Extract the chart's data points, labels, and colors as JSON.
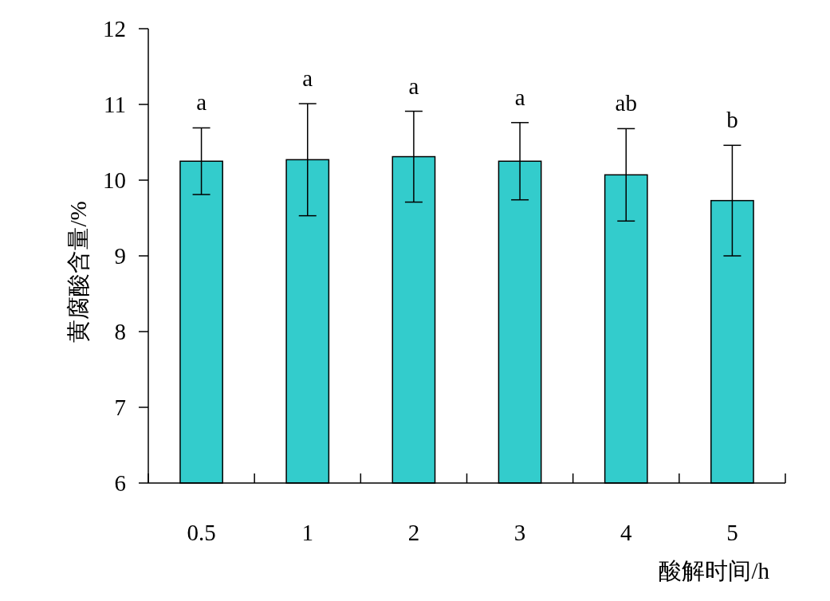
{
  "chart_data": {
    "type": "bar",
    "xlabel": "酸解时间/h",
    "ylabel": "黄腐酸含量/%",
    "categories": [
      "0.5",
      "1",
      "2",
      "3",
      "4",
      "5"
    ],
    "values": [
      10.25,
      10.27,
      10.31,
      10.25,
      10.07,
      9.73
    ],
    "errors": [
      0.44,
      0.74,
      0.6,
      0.51,
      0.61,
      0.73
    ],
    "color": "#33cccc",
    "ylim": [
      6,
      12
    ],
    "yticks": [
      6,
      7,
      8,
      9,
      10,
      11,
      12
    ],
    "grid": false,
    "annotations": [
      "a",
      "a",
      "a",
      "a",
      "ab",
      "b"
    ]
  }
}
